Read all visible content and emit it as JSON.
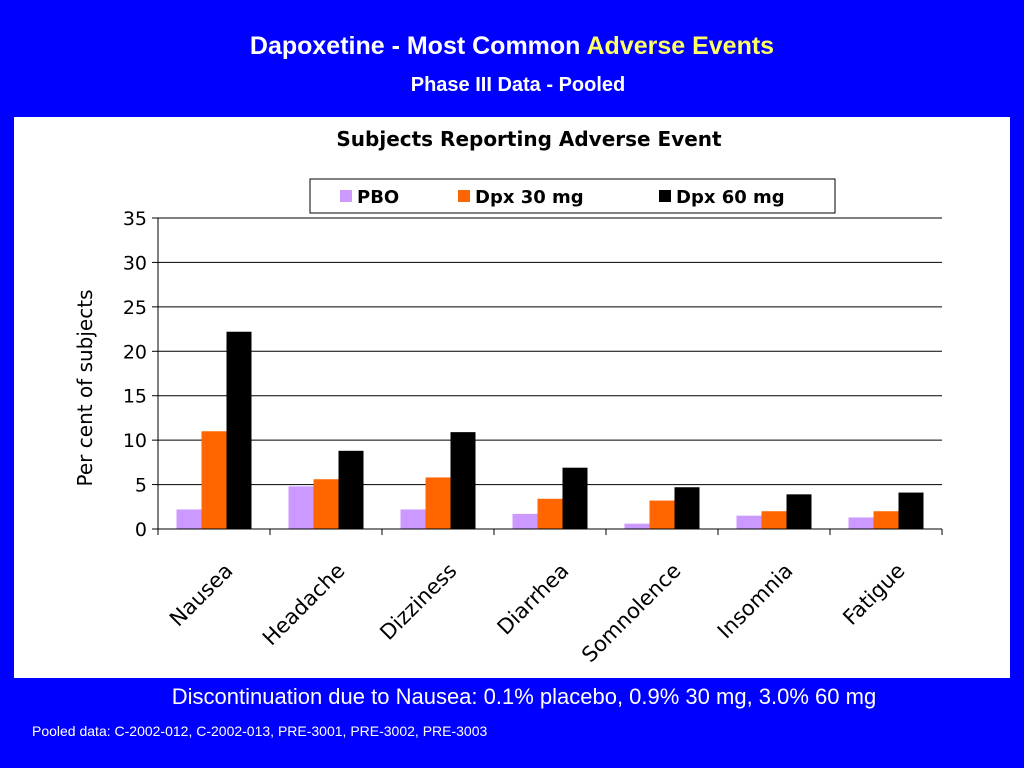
{
  "slide": {
    "title_part1": "Dapoxetine - Most Common ",
    "title_part2": "Adverse Events",
    "subtitle": "Phase III Data - Pooled",
    "note": "Discontinuation due to Nausea: 0.1% placebo, 0.9% 30 mg, 3.0% 60 mg",
    "footer": "Pooled data: C-2002-012, C-2002-013, PRE-3001, PRE-3002, PRE-3003"
  },
  "colors": {
    "background": "#0000FF",
    "title_highlight": "#FFFF66",
    "pbo": "#CC99FF",
    "dpx30": "#FF6600",
    "dpx60": "#000000"
  },
  "chart_data": {
    "type": "bar",
    "title": "Subjects Reporting Adverse Event",
    "xlabel": "",
    "ylabel": "Per cent of subjects",
    "ylim": [
      0,
      35
    ],
    "yticks": [
      0,
      5,
      10,
      15,
      20,
      25,
      30,
      35
    ],
    "grid": true,
    "legend_position": "top",
    "categories": [
      "Nausea",
      "Headache",
      "Dizziness",
      "Diarrhea",
      "Somnolence",
      "Insomnia",
      "Fatigue"
    ],
    "series": [
      {
        "name": "PBO",
        "color": "#CC99FF",
        "values": [
          2.2,
          4.8,
          2.2,
          1.7,
          0.6,
          1.5,
          1.3
        ]
      },
      {
        "name": "Dpx 30 mg",
        "color": "#FF6600",
        "values": [
          11.0,
          5.6,
          5.8,
          3.4,
          3.2,
          2.0,
          2.0
        ]
      },
      {
        "name": "Dpx 60 mg",
        "color": "#000000",
        "values": [
          22.2,
          8.8,
          10.9,
          6.9,
          4.7,
          3.9,
          4.1
        ]
      }
    ]
  }
}
